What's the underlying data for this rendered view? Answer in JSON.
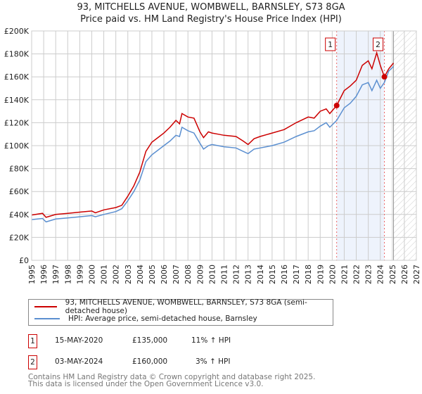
{
  "chart_data": {
    "type": "line",
    "title": "93, MITCHELLS AVENUE, WOMBWELL, BARNSLEY, S73 8GA",
    "subtitle": "Price paid vs. HM Land Registry's House Price Index (HPI)",
    "xlim": [
      1995,
      2027
    ],
    "ylim": [
      0,
      200000
    ],
    "x_ticks": [
      "1995",
      "1996",
      "1997",
      "1998",
      "1999",
      "2000",
      "2001",
      "2002",
      "2003",
      "2004",
      "2005",
      "2006",
      "2007",
      "2008",
      "2009",
      "2010",
      "2011",
      "2012",
      "2013",
      "2014",
      "2015",
      "2016",
      "2017",
      "2018",
      "2019",
      "2020",
      "2021",
      "2022",
      "2023",
      "2024",
      "2025",
      "2026",
      "2027"
    ],
    "y_ticks": [
      {
        "v": 0,
        "l": "£0"
      },
      {
        "v": 20000,
        "l": "£20K"
      },
      {
        "v": 40000,
        "l": "£40K"
      },
      {
        "v": 60000,
        "l": "£60K"
      },
      {
        "v": 80000,
        "l": "£80K"
      },
      {
        "v": 100000,
        "l": "£100K"
      },
      {
        "v": 120000,
        "l": "£120K"
      },
      {
        "v": 140000,
        "l": "£140K"
      },
      {
        "v": 160000,
        "l": "£160K"
      },
      {
        "v": 180000,
        "l": "£180K"
      },
      {
        "v": 200000,
        "l": "£200K"
      }
    ],
    "grid": true,
    "shaded_period": [
      2020.37,
      2024.34
    ],
    "forecast_hatch_from": 2025.1,
    "series": [
      {
        "name": "93, MITCHELLS AVENUE, WOMBWELL, BARNSLEY, S73 8GA (semi-detached house)",
        "color": "#cc0000",
        "x": [
          1995,
          1995.9,
          1996.2,
          1997,
          1998,
          1999,
          2000,
          2000.3,
          2001,
          2002,
          2002.5,
          2003,
          2003.5,
          2004,
          2004.5,
          2005,
          2005.5,
          2006,
          2006.5,
          2007,
          2007.3,
          2007.5,
          2008,
          2008.5,
          2009,
          2009.3,
          2009.7,
          2010,
          2010.5,
          2011,
          2012,
          2012.6,
          2013,
          2013.5,
          2014,
          2015,
          2016,
          2017,
          2018,
          2018.5,
          2019,
          2019.5,
          2019.8,
          2020.37,
          2021,
          2021.5,
          2022,
          2022.5,
          2023,
          2023.3,
          2023.7,
          2024,
          2024.34,
          2024.7,
          2025.1
        ],
        "values": [
          39500,
          41000,
          37500,
          40000,
          41000,
          42000,
          43000,
          41500,
          44000,
          46000,
          48000,
          56000,
          65000,
          77000,
          95000,
          103000,
          107000,
          111000,
          116000,
          122000,
          119000,
          128000,
          125000,
          124000,
          112000,
          107000,
          112000,
          111000,
          110000,
          109000,
          108000,
          104000,
          101000,
          106000,
          108000,
          111000,
          114000,
          120000,
          125000,
          124000,
          130000,
          132000,
          128000,
          135000,
          148000,
          152000,
          157000,
          170000,
          174000,
          167000,
          181000,
          170000,
          160000,
          167000,
          172000
        ]
      },
      {
        "name": "HPI: Average price, semi-detached house, Barnsley",
        "color": "#5b8fd0",
        "x": [
          1995,
          1995.9,
          1996.2,
          1997,
          1998,
          1999,
          2000,
          2000.3,
          2001,
          2002,
          2002.5,
          2003,
          2003.5,
          2004,
          2004.5,
          2005,
          2005.5,
          2006,
          2006.5,
          2007,
          2007.3,
          2007.5,
          2008,
          2008.5,
          2009,
          2009.3,
          2009.7,
          2010,
          2010.5,
          2011,
          2012,
          2012.6,
          2013,
          2013.5,
          2014,
          2015,
          2016,
          2017,
          2018,
          2018.5,
          2019,
          2019.5,
          2019.8,
          2020.37,
          2021,
          2021.5,
          2022,
          2022.5,
          2023,
          2023.3,
          2023.7,
          2024,
          2024.34,
          2024.7,
          2025.1
        ],
        "values": [
          35500,
          36500,
          33500,
          36000,
          37000,
          38000,
          39000,
          38000,
          40000,
          42500,
          45000,
          52000,
          60000,
          70000,
          86000,
          92000,
          96000,
          100000,
          104000,
          109000,
          108000,
          116000,
          113000,
          111000,
          102000,
          97000,
          100000,
          101000,
          100000,
          99000,
          98000,
          95000,
          93000,
          97000,
          98000,
          100000,
          103000,
          108000,
          112000,
          113000,
          117000,
          120000,
          116000,
          122000,
          133000,
          137000,
          143000,
          153000,
          155000,
          148000,
          157000,
          150000,
          155000,
          165000,
          169000
        ]
      }
    ],
    "sales": [
      {
        "id": "1",
        "x": 2020.37,
        "price": 135000
      },
      {
        "id": "2",
        "x": 2024.34,
        "price": 160000
      }
    ]
  },
  "legend": {
    "property": "93, MITCHELLS AVENUE, WOMBWELL, BARNSLEY, S73 8GA (semi-detached house)",
    "hpi": "HPI: Average price, semi-detached house, Barnsley"
  },
  "transactions": [
    {
      "id": "1",
      "date": "15-MAY-2020",
      "price": "£135,000",
      "hpi": "11% ↑ HPI"
    },
    {
      "id": "2",
      "date": "03-MAY-2024",
      "price": "£160,000",
      "hpi": "3% ↑ HPI"
    }
  ],
  "footer": {
    "line1": "Contains HM Land Registry data © Crown copyright and database right 2025.",
    "line2": "This data is licensed under the Open Government Licence v3.0."
  }
}
